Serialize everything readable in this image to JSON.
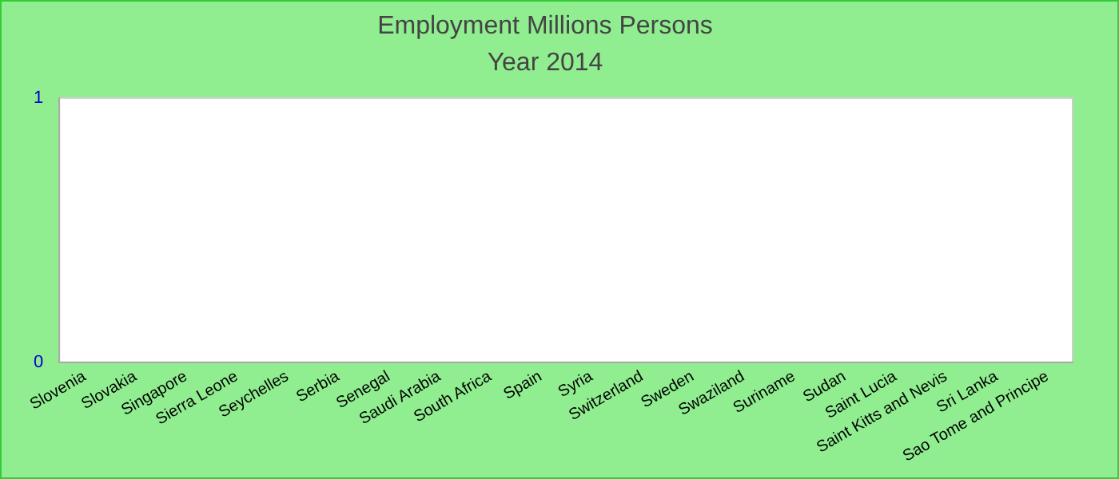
{
  "chart_data": {
    "type": "bar",
    "title": "Employment Millions Persons",
    "subtitle": "Year 2014",
    "categories": [
      "Slovenia",
      "Slovakia",
      "Singapore",
      "Sierra Leone",
      "Seychelles",
      "Serbia",
      "Senegal",
      "Saudi Arabia",
      "South Africa",
      "Spain",
      "Syria",
      "Switzerland",
      "Sweden",
      "Swaziland",
      "Suriname",
      "Sudan",
      "Saint Lucia",
      "Saint Kitts and Nevis",
      "Sri Lanka",
      "Sao Tome and Principe"
    ],
    "values": [
      0,
      0,
      0,
      0,
      0,
      0,
      0,
      0,
      0,
      0,
      0,
      0,
      0,
      0,
      0,
      0,
      0,
      0,
      0,
      0
    ],
    "ylim": [
      0,
      1
    ],
    "yticks": [
      0,
      1
    ],
    "grid": false,
    "legend": false
  }
}
